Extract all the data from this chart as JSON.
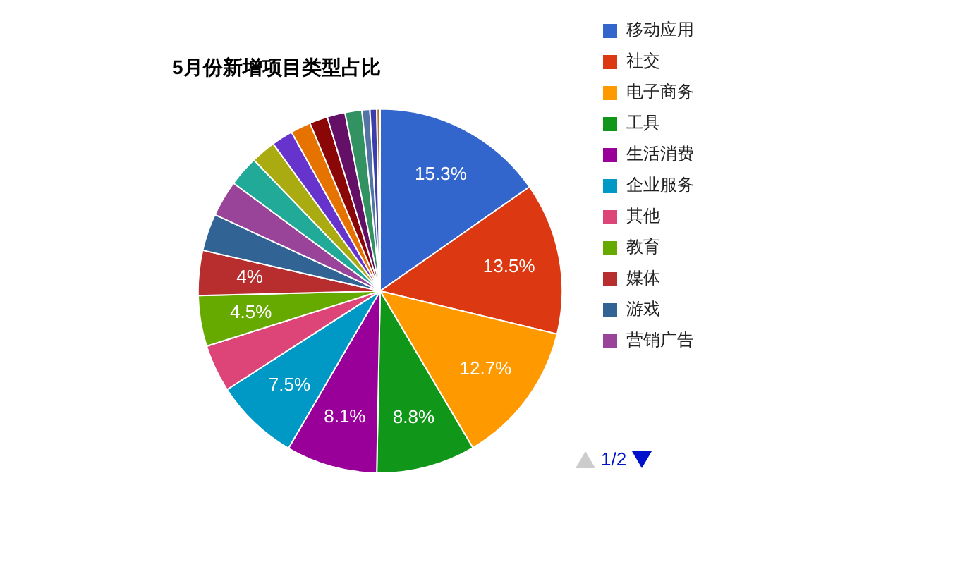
{
  "chart_data": {
    "type": "pie",
    "title": "5月份新增项目类型占比",
    "categories": [
      "移动应用",
      "社交",
      "电子商务",
      "工具",
      "生活消费",
      "企业服务",
      "其他",
      "教育",
      "媒体",
      "游戏",
      "营销广告",
      null,
      null,
      null,
      null,
      null,
      null,
      null,
      null,
      null,
      null
    ],
    "values": [
      15.3,
      13.5,
      12.7,
      8.8,
      8.1,
      7.5,
      4.2,
      4.5,
      4,
      3.3,
      3.2,
      2.7,
      2.2,
      1.9,
      1.8,
      1.6,
      1.6,
      1.5,
      0.7,
      0.6,
      0.3
    ],
    "colors": [
      "#3366cc",
      "#dc3912",
      "#ff9900",
      "#109618",
      "#990099",
      "#0099c6",
      "#dd4477",
      "#66aa00",
      "#b82e2e",
      "#316395",
      "#994499",
      "#22aa99",
      "#aaaa11",
      "#6633cc",
      "#e67300",
      "#8b0707",
      "#651067",
      "#329262",
      "#5574a6",
      "#3b3eac",
      "#b77322"
    ],
    "value_labels": [
      "15.3%",
      "13.5%",
      "12.7%",
      "8.8%",
      "8.1%",
      "7.5%",
      null,
      "4.5%",
      "4%",
      null,
      null,
      null,
      null,
      null,
      null,
      null,
      null,
      null,
      null,
      null,
      null
    ],
    "legend": "right",
    "annotations": [
      "1/2"
    ]
  }
}
